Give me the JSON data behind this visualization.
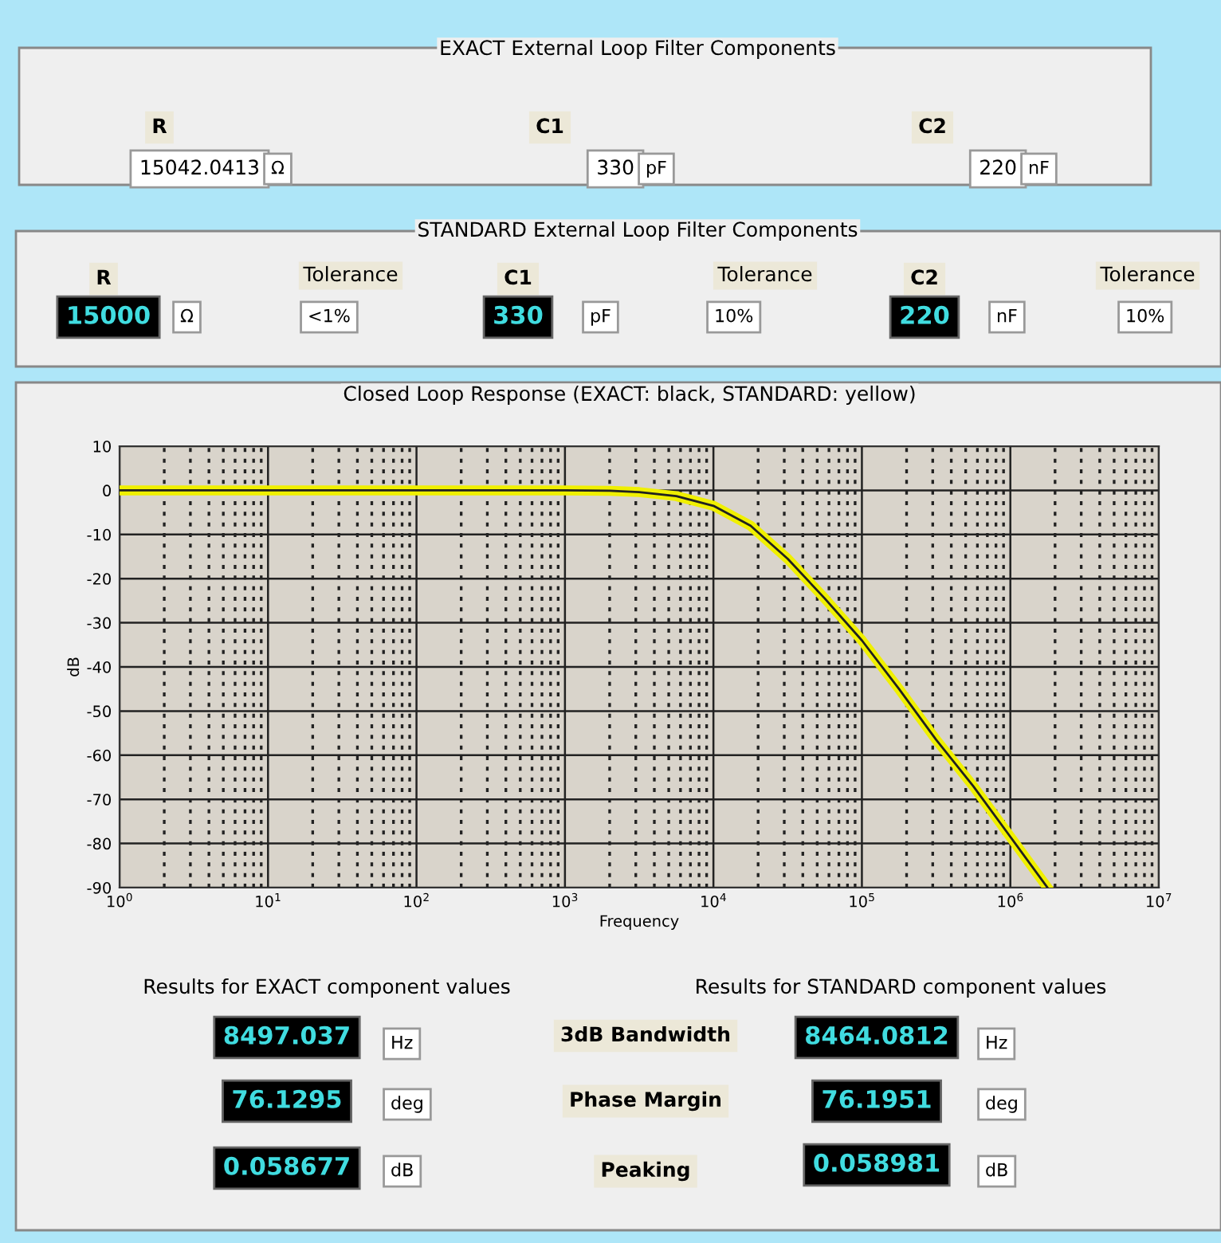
{
  "chart_data": {
    "type": "line",
    "title": "Closed Loop Response (EXACT: black, STANDARD: yellow)",
    "xlabel": "Frequency",
    "ylabel": "dB",
    "log": "x",
    "grid": true,
    "legend": false,
    "marker": "none",
    "line_style": "solid",
    "xlim": [
      1,
      10000000
    ],
    "ylim": [
      -90,
      10
    ],
    "xticks": [
      {
        "value": 1,
        "label": "10$^{0}$"
      },
      {
        "value": 10,
        "label": "10$^{1}$"
      },
      {
        "value": 100,
        "label": "10$^{2}$"
      },
      {
        "value": 1000,
        "label": "10$^{3}$"
      },
      {
        "value": 10000,
        "label": "10$^{4}$"
      },
      {
        "value": 100000,
        "label": "10$^{5}$"
      },
      {
        "value": 1000000,
        "label": "10$^{6}$"
      },
      {
        "value": 10000000,
        "label": "10$^{7}$"
      }
    ],
    "yticks": [
      10,
      0,
      -10,
      -20,
      -30,
      -40,
      -50,
      -60,
      -70,
      -80,
      -90
    ],
    "x": [
      1,
      10,
      100,
      1000,
      2000,
      3162,
      5623,
      10000,
      17783,
      31623,
      56234,
      100000,
      177828,
      316228,
      562341,
      1000000,
      1778279
    ],
    "series": [
      {
        "color": "#f0f000",
        "values": [
          0,
          0,
          0,
          0,
          -0.1,
          -0.4,
          -1.3,
          -3.5,
          -8,
          -15.5,
          -24.5,
          -34,
          -45,
          -56.5,
          -67,
          -78.5,
          -90
        ]
      },
      {
        "color": "#202020",
        "values": [
          0,
          0,
          0,
          0,
          -0.1,
          -0.4,
          -1.3,
          -3.5,
          -8,
          -15.5,
          -24.5,
          -34,
          -45,
          -56.5,
          -67,
          -78.5,
          -90
        ]
      }
    ],
    "annotations": [
      "EXACT External Loop Filter Components",
      "R",
      "15042.0413",
      "Ω",
      "C1",
      "330",
      "pF",
      "C2",
      "220",
      "nF",
      "STANDARD External Loop Filter Components",
      "R",
      "15000",
      "Ω",
      "Tolerance",
      "<1%",
      "C1",
      "330",
      "pF",
      "Tolerance",
      "10%",
      "C2",
      "220",
      "nF",
      "Tolerance",
      "10%",
      "Results for EXACT component values",
      "Results for STANDARD component values",
      "8497.037",
      "Hz",
      "3dB Bandwidth",
      "8464.0812",
      "Hz",
      "76.1295",
      "deg",
      "Phase Margin",
      "76.1951",
      "deg",
      "0.058677",
      "dB",
      "Peaking",
      "0.058981",
      "dB"
    ]
  }
}
